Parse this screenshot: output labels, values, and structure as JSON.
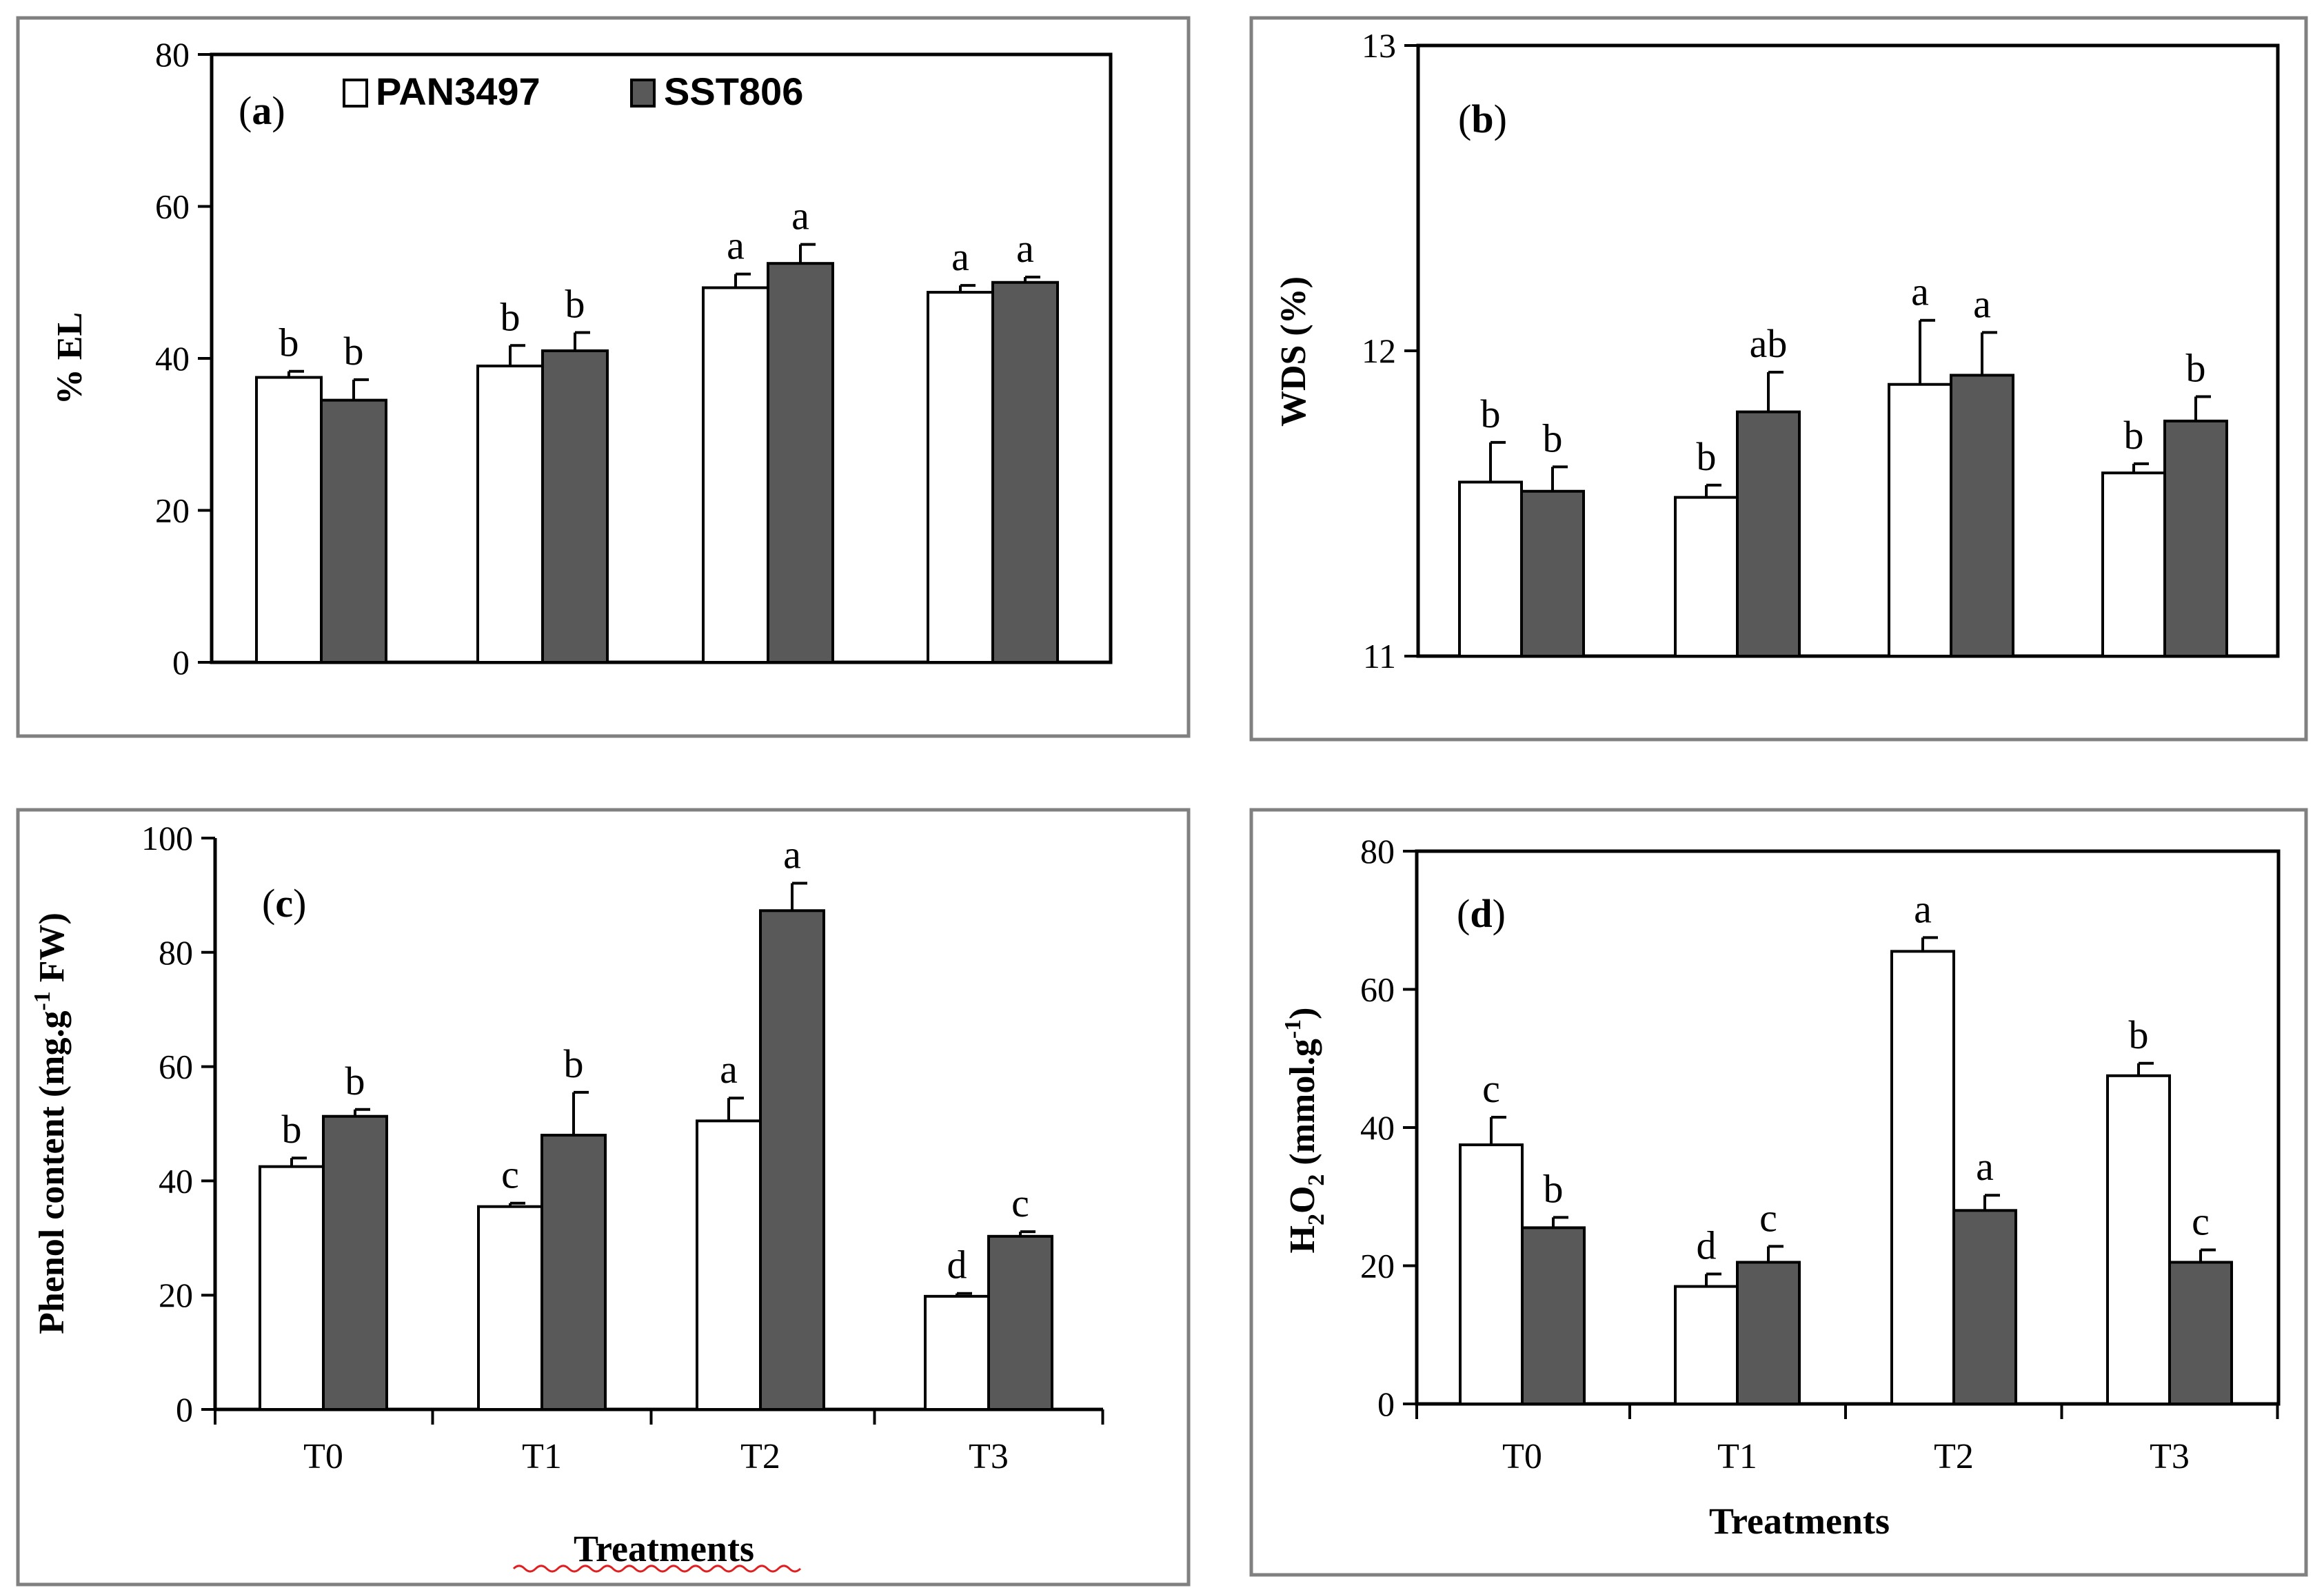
{
  "colors": {
    "pan": "#ffffff",
    "sst": "#595959",
    "stroke": "#000000"
  },
  "legend": {
    "pan": "PAN3497",
    "sst": "SST806"
  },
  "chart_data": [
    {
      "type": "bar",
      "panel": "(a)",
      "panel_letter": "a",
      "categories": [
        "T0",
        "T1",
        "T2",
        "T3"
      ],
      "ylabel": "% EL",
      "xlabel": "",
      "ylim": [
        0,
        80
      ],
      "yticks": [
        "0",
        "20",
        "40",
        "60",
        "80"
      ],
      "series": [
        {
          "name": "PAN3497",
          "values": [
            37.5,
            39,
            49.3,
            48.7
          ],
          "errors": [
            0.8,
            2.7,
            1.8,
            0.9
          ],
          "letters": [
            "b",
            "b",
            "a",
            "a"
          ]
        },
        {
          "name": "SST806",
          "values": [
            34.5,
            41,
            52.5,
            50
          ],
          "errors": [
            2.7,
            2.4,
            2.5,
            0.7
          ],
          "letters": [
            "b",
            "b",
            "a",
            "a"
          ]
        }
      ]
    },
    {
      "type": "bar",
      "panel": "(b)",
      "panel_letter": "b",
      "categories": [
        "T0",
        "T1",
        "T2",
        "T3"
      ],
      "ylabel": "WDS (%)",
      "xlabel": "",
      "ylim": [
        11,
        13
      ],
      "yticks": [
        "11",
        "12",
        "13"
      ],
      "series": [
        {
          "name": "PAN3497",
          "values": [
            11.57,
            11.52,
            11.89,
            11.6
          ],
          "errors": [
            0.13,
            0.04,
            0.21,
            0.03
          ],
          "letters": [
            "b",
            "b",
            "a",
            "b"
          ]
        },
        {
          "name": "SST806",
          "values": [
            11.54,
            11.8,
            11.92,
            11.77
          ],
          "errors": [
            0.08,
            0.13,
            0.14,
            0.08
          ],
          "letters": [
            "b",
            "ab",
            "a",
            "b"
          ]
        }
      ]
    },
    {
      "type": "bar",
      "panel": "(c)",
      "panel_letter": "c",
      "categories": [
        "T0",
        "T1",
        "T2",
        "T3"
      ],
      "ylabel": "Phenol content (mg.g",
      "ylabel_sup": "-1",
      "ylabel_tail": " FW)",
      "xlabel": "Treatments",
      "ylim": [
        0,
        100
      ],
      "yticks": [
        "0",
        "20",
        "40",
        "60",
        "80",
        "100"
      ],
      "series": [
        {
          "name": "PAN3497",
          "values": [
            42.5,
            35.5,
            50.5,
            19.8
          ],
          "errors": [
            1.5,
            0.6,
            4,
            0.5
          ],
          "letters": [
            "b",
            "c",
            "a",
            "d"
          ]
        },
        {
          "name": "SST806",
          "values": [
            51.3,
            48,
            87.3,
            30.3
          ],
          "errors": [
            1.2,
            7.5,
            4.8,
            0.8
          ],
          "letters": [
            "b",
            "b",
            "a",
            "c"
          ]
        }
      ]
    },
    {
      "type": "bar",
      "panel": "(d)",
      "panel_letter": "d",
      "categories": [
        "T0",
        "T1",
        "T2",
        "T3"
      ],
      "ylabel": "H",
      "ylabel_sub1": "2",
      "ylabel_mid": "O",
      "ylabel_sub2": "2",
      "ylabel_tail": " (mmol.g",
      "ylabel_sup": "-1",
      "ylabel_end": ")",
      "xlabel": "Treatments",
      "ylim": [
        0,
        80
      ],
      "yticks": [
        "0",
        "20",
        "40",
        "60",
        "80"
      ],
      "series": [
        {
          "name": "PAN3497",
          "values": [
            37.5,
            17,
            65.5,
            47.5
          ],
          "errors": [
            4,
            1.8,
            2,
            1.8
          ],
          "letters": [
            "c",
            "d",
            "a",
            "b"
          ]
        },
        {
          "name": "SST806",
          "values": [
            25.5,
            20.5,
            28,
            20.5
          ],
          "errors": [
            1.5,
            2.3,
            2.2,
            1.8
          ],
          "letters": [
            "b",
            "c",
            "a",
            "c"
          ]
        }
      ]
    }
  ]
}
